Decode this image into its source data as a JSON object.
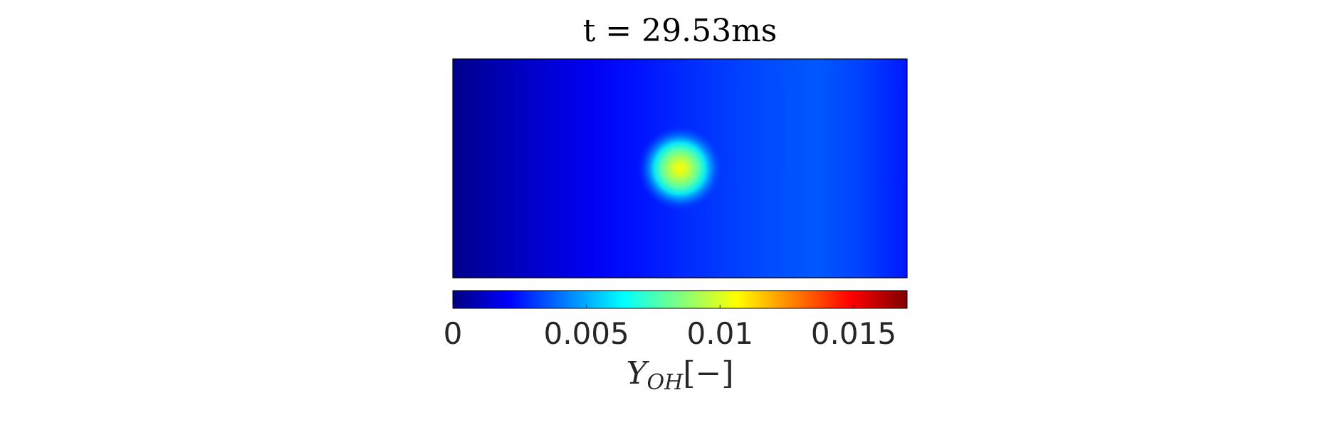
{
  "chart_data": {
    "type": "heatmap",
    "title": "t = 29.53ms",
    "field": "Y_OH",
    "colormap": "jet",
    "clim": [
      0,
      0.017
    ],
    "background": {
      "description_values": "left edge to right edge",
      "x_fraction": [
        0.0,
        0.1,
        0.2,
        0.3,
        0.4,
        0.5,
        0.6,
        0.7,
        0.8,
        0.9,
        1.0
      ],
      "values": [
        0.0002,
        0.0008,
        0.0014,
        0.0019,
        0.0024,
        0.0028,
        0.0031,
        0.0034,
        0.0036,
        0.0032,
        0.0025
      ]
    },
    "hotspot": {
      "center_x_fraction": 0.5,
      "center_y_fraction": 0.5,
      "peak_value": 0.0107
    },
    "colorbar": {
      "ticks": [
        0,
        0.005,
        0.01,
        0.015
      ],
      "tick_labels": [
        "0",
        "0.005",
        "0.01",
        "0.015"
      ],
      "label_main": "Y",
      "label_sub": "OH",
      "label_units": "[−]"
    }
  }
}
